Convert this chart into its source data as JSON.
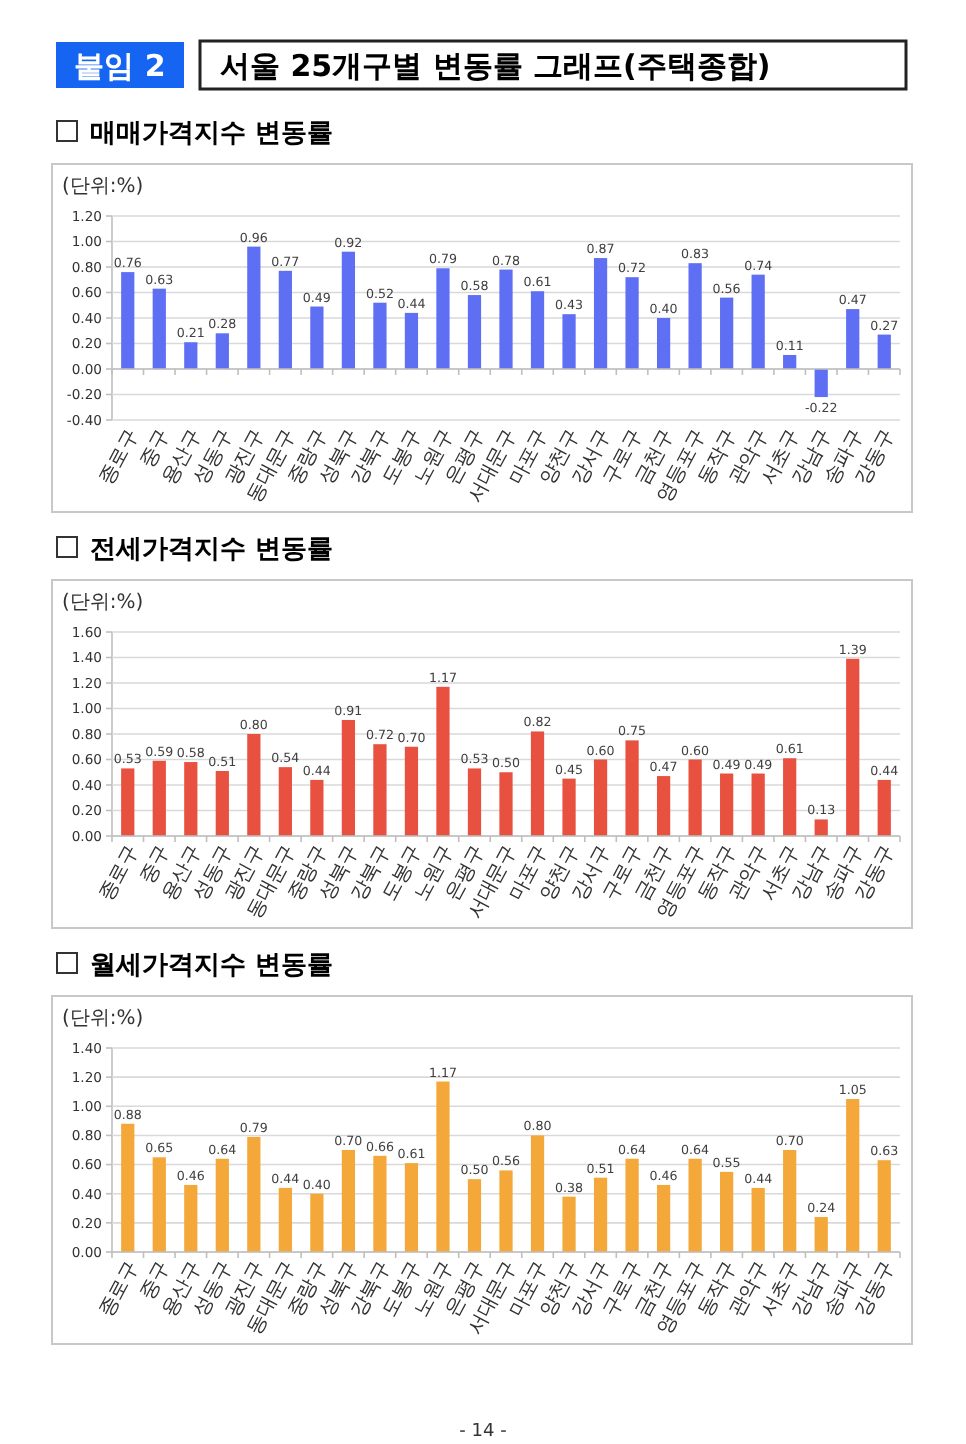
{
  "chart_data": [
    {
      "type": "bar",
      "title": "매매가격지수 변동률",
      "ylabel": "(단위:%)",
      "annotations": [
        "붙임 2",
        "서울 25개구별 변동률 그래프(주택종합)"
      ],
      "categories": [
        "종로구",
        "중구",
        "용산구",
        "성동구",
        "광진구",
        "동대문구",
        "중랑구",
        "성북구",
        "강북구",
        "도봉구",
        "노원구",
        "은평구",
        "서대문구",
        "마포구",
        "양천구",
        "강서구",
        "구로구",
        "금천구",
        "영등포구",
        "동작구",
        "관악구",
        "서초구",
        "강남구",
        "송파구",
        "강동구"
      ],
      "values": [
        0.76,
        0.63,
        0.21,
        0.28,
        0.96,
        0.77,
        0.49,
        0.92,
        0.52,
        0.44,
        0.79,
        0.58,
        0.78,
        0.61,
        0.43,
        0.87,
        0.72,
        0.4,
        0.83,
        0.56,
        0.74,
        0.11,
        -0.22,
        0.47,
        0.27
      ],
      "value_labels": [
        "0.76",
        "0.63",
        "0.21",
        "0.28",
        "0.96",
        "0.77",
        "0.49",
        "0.92",
        "0.52",
        "0.44",
        "0.79",
        "0.58",
        "0.78",
        "0.61",
        "0.43",
        "0.87",
        "0.72",
        "0.40",
        "0.83",
        "0.56",
        "0.74",
        "0.11",
        "-0.22",
        "0.47",
        "0.27"
      ],
      "color": "#5f6ff4",
      "ylim": [
        -0.4,
        1.2
      ],
      "yticks": [
        {
          "value": -0.4,
          "label": "-0.40"
        },
        {
          "value": -0.2,
          "label": "-0.20"
        },
        {
          "value": 0,
          "label": "0.00"
        },
        {
          "value": 0.2,
          "label": "0.20"
        },
        {
          "value": 0.4,
          "label": "0.40"
        },
        {
          "value": 0.6,
          "label": "0.60"
        },
        {
          "value": 0.8,
          "label": "0.80"
        },
        {
          "value": 1.0,
          "label": "1.00"
        },
        {
          "value": 1.2,
          "label": "1.20"
        }
      ],
      "grid": "y"
    },
    {
      "type": "bar",
      "title": "전세가격지수 변동률",
      "ylabel": "(단위:%)",
      "categories": [
        "종로구",
        "중구",
        "용산구",
        "성동구",
        "광진구",
        "동대문구",
        "중랑구",
        "성북구",
        "강북구",
        "도봉구",
        "노원구",
        "은평구",
        "서대문구",
        "마포구",
        "양천구",
        "강서구",
        "구로구",
        "금천구",
        "영등포구",
        "동작구",
        "관악구",
        "서초구",
        "강남구",
        "송파구",
        "강동구"
      ],
      "values": [
        0.53,
        0.59,
        0.58,
        0.51,
        0.8,
        0.54,
        0.44,
        0.91,
        0.72,
        0.7,
        1.17,
        0.53,
        0.5,
        0.82,
        0.45,
        0.6,
        0.75,
        0.47,
        0.6,
        0.49,
        0.49,
        0.61,
        0.13,
        1.39,
        0.44
      ],
      "value_labels": [
        "0.53",
        "0.59",
        "0.58",
        "0.51",
        "0.80",
        "0.54",
        "0.44",
        "0.91",
        "0.72",
        "0.70",
        "1.17",
        "0.53",
        "0.50",
        "0.82",
        "0.45",
        "0.60",
        "0.75",
        "0.47",
        "0.60",
        "0.49",
        "0.49",
        "0.61",
        "0.13",
        "1.39",
        "0.44"
      ],
      "color": "#e8513f",
      "ylim": [
        0,
        1.6
      ],
      "yticks": [
        {
          "value": 0,
          "label": "0.00"
        },
        {
          "value": 0.2,
          "label": "0.20"
        },
        {
          "value": 0.4,
          "label": "0.40"
        },
        {
          "value": 0.6,
          "label": "0.60"
        },
        {
          "value": 0.8,
          "label": "0.80"
        },
        {
          "value": 1.0,
          "label": "1.00"
        },
        {
          "value": 1.2,
          "label": "1.20"
        },
        {
          "value": 1.4,
          "label": "1.40"
        },
        {
          "value": 1.6,
          "label": "1.60"
        }
      ],
      "grid": "y"
    },
    {
      "type": "bar",
      "title": "월세가격지수 변동률",
      "ylabel": "(단위:%)",
      "annotations": [
        "- 14 -"
      ],
      "categories": [
        "종로구",
        "중구",
        "용산구",
        "성동구",
        "광진구",
        "동대문구",
        "중랑구",
        "성북구",
        "강북구",
        "도봉구",
        "노원구",
        "은평구",
        "서대문구",
        "마포구",
        "양천구",
        "강서구",
        "구로구",
        "금천구",
        "영등포구",
        "동작구",
        "관악구",
        "서초구",
        "강남구",
        "송파구",
        "강동구"
      ],
      "values": [
        0.88,
        0.65,
        0.46,
        0.64,
        0.79,
        0.44,
        0.4,
        0.7,
        0.66,
        0.61,
        1.17,
        0.5,
        0.56,
        0.8,
        0.38,
        0.51,
        0.64,
        0.46,
        0.64,
        0.55,
        0.44,
        0.7,
        0.24,
        1.05,
        0.63
      ],
      "value_labels": [
        "0.88",
        "0.65",
        "0.46",
        "0.64",
        "0.79",
        "0.44",
        "0.40",
        "0.70",
        "0.66",
        "0.61",
        "1.17",
        "0.50",
        "0.56",
        "0.80",
        "0.38",
        "0.51",
        "0.64",
        "0.46",
        "0.64",
        "0.55",
        "0.44",
        "0.70",
        "0.24",
        "1.05",
        "0.63"
      ],
      "color": "#f5a83a",
      "ylim": [
        0,
        1.4
      ],
      "yticks": [
        {
          "value": 0,
          "label": "0.00"
        },
        {
          "value": 0.2,
          "label": "0.20"
        },
        {
          "value": 0.4,
          "label": "0.40"
        },
        {
          "value": 0.6,
          "label": "0.60"
        },
        {
          "value": 0.8,
          "label": "0.80"
        },
        {
          "value": 1.0,
          "label": "1.00"
        },
        {
          "value": 1.2,
          "label": "1.20"
        },
        {
          "value": 1.4,
          "label": "1.40"
        }
      ],
      "grid": "y"
    }
  ]
}
